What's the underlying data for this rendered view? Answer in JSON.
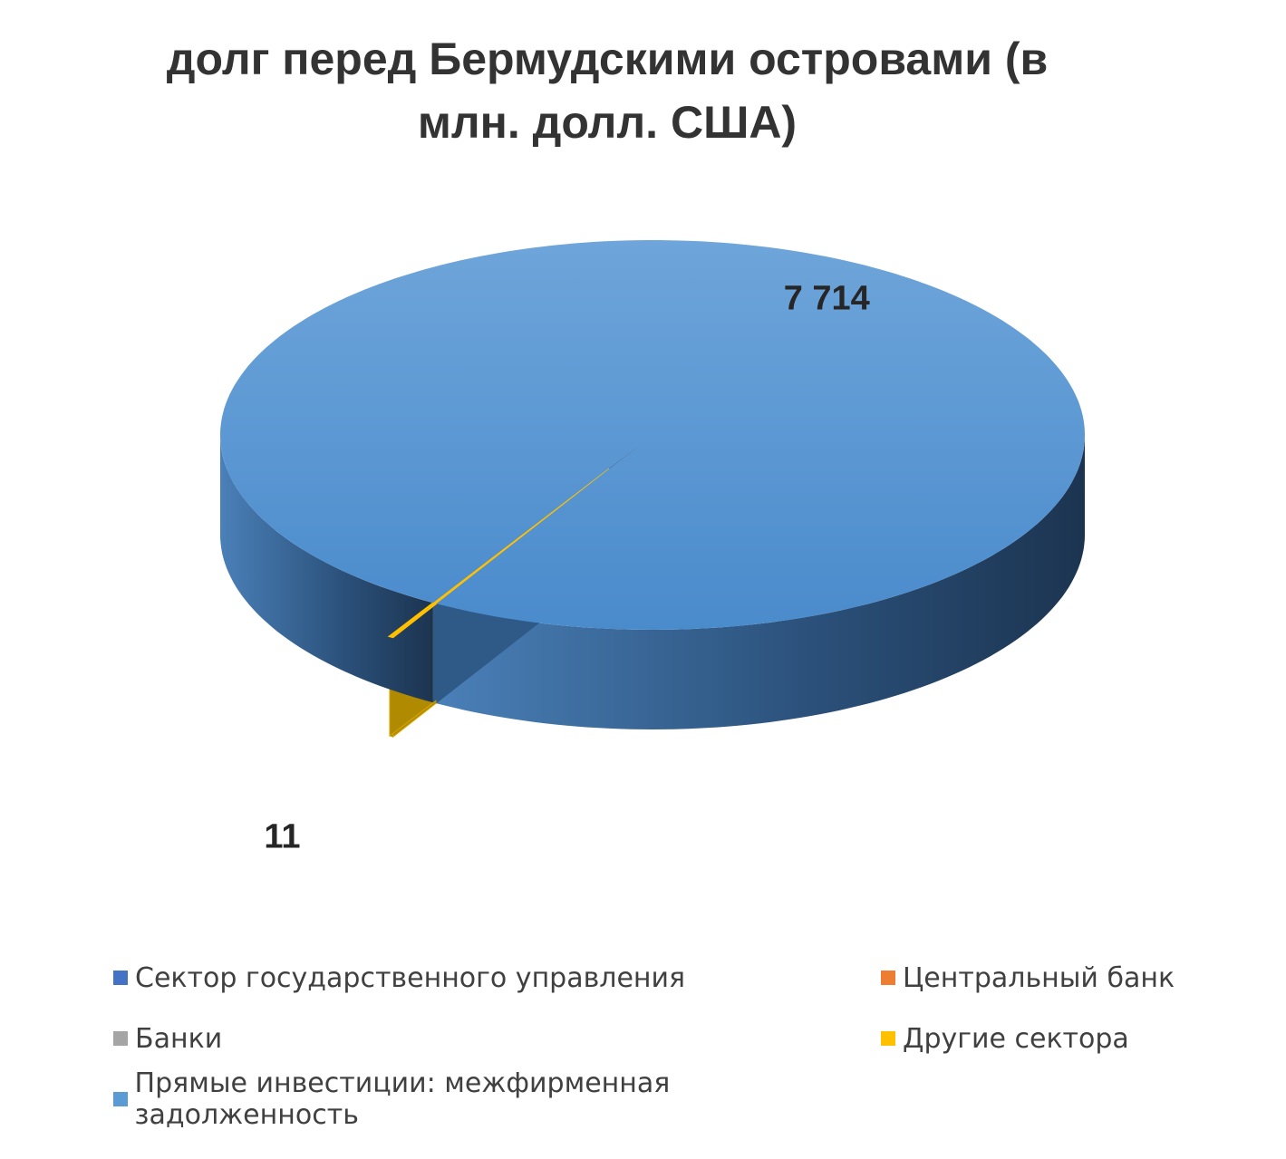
{
  "chart_data": {
    "type": "pie3d",
    "title": "долг перед Бермудскими островами (в млн. долл. США)",
    "categories": [
      "Сектор государственного управления",
      "Центральный банк",
      "Банки",
      "Другие сектора",
      "Прямые инвестиции: межфирменная задолженность"
    ],
    "values": [
      0,
      0,
      0,
      11,
      7714
    ],
    "value_labels": [
      null,
      null,
      null,
      "11",
      "7 714"
    ],
    "colors": [
      "#4472c4",
      "#ed7d31",
      "#a5a5a5",
      "#ffc000",
      "#5b9bd5"
    ],
    "legend": "bottom"
  }
}
